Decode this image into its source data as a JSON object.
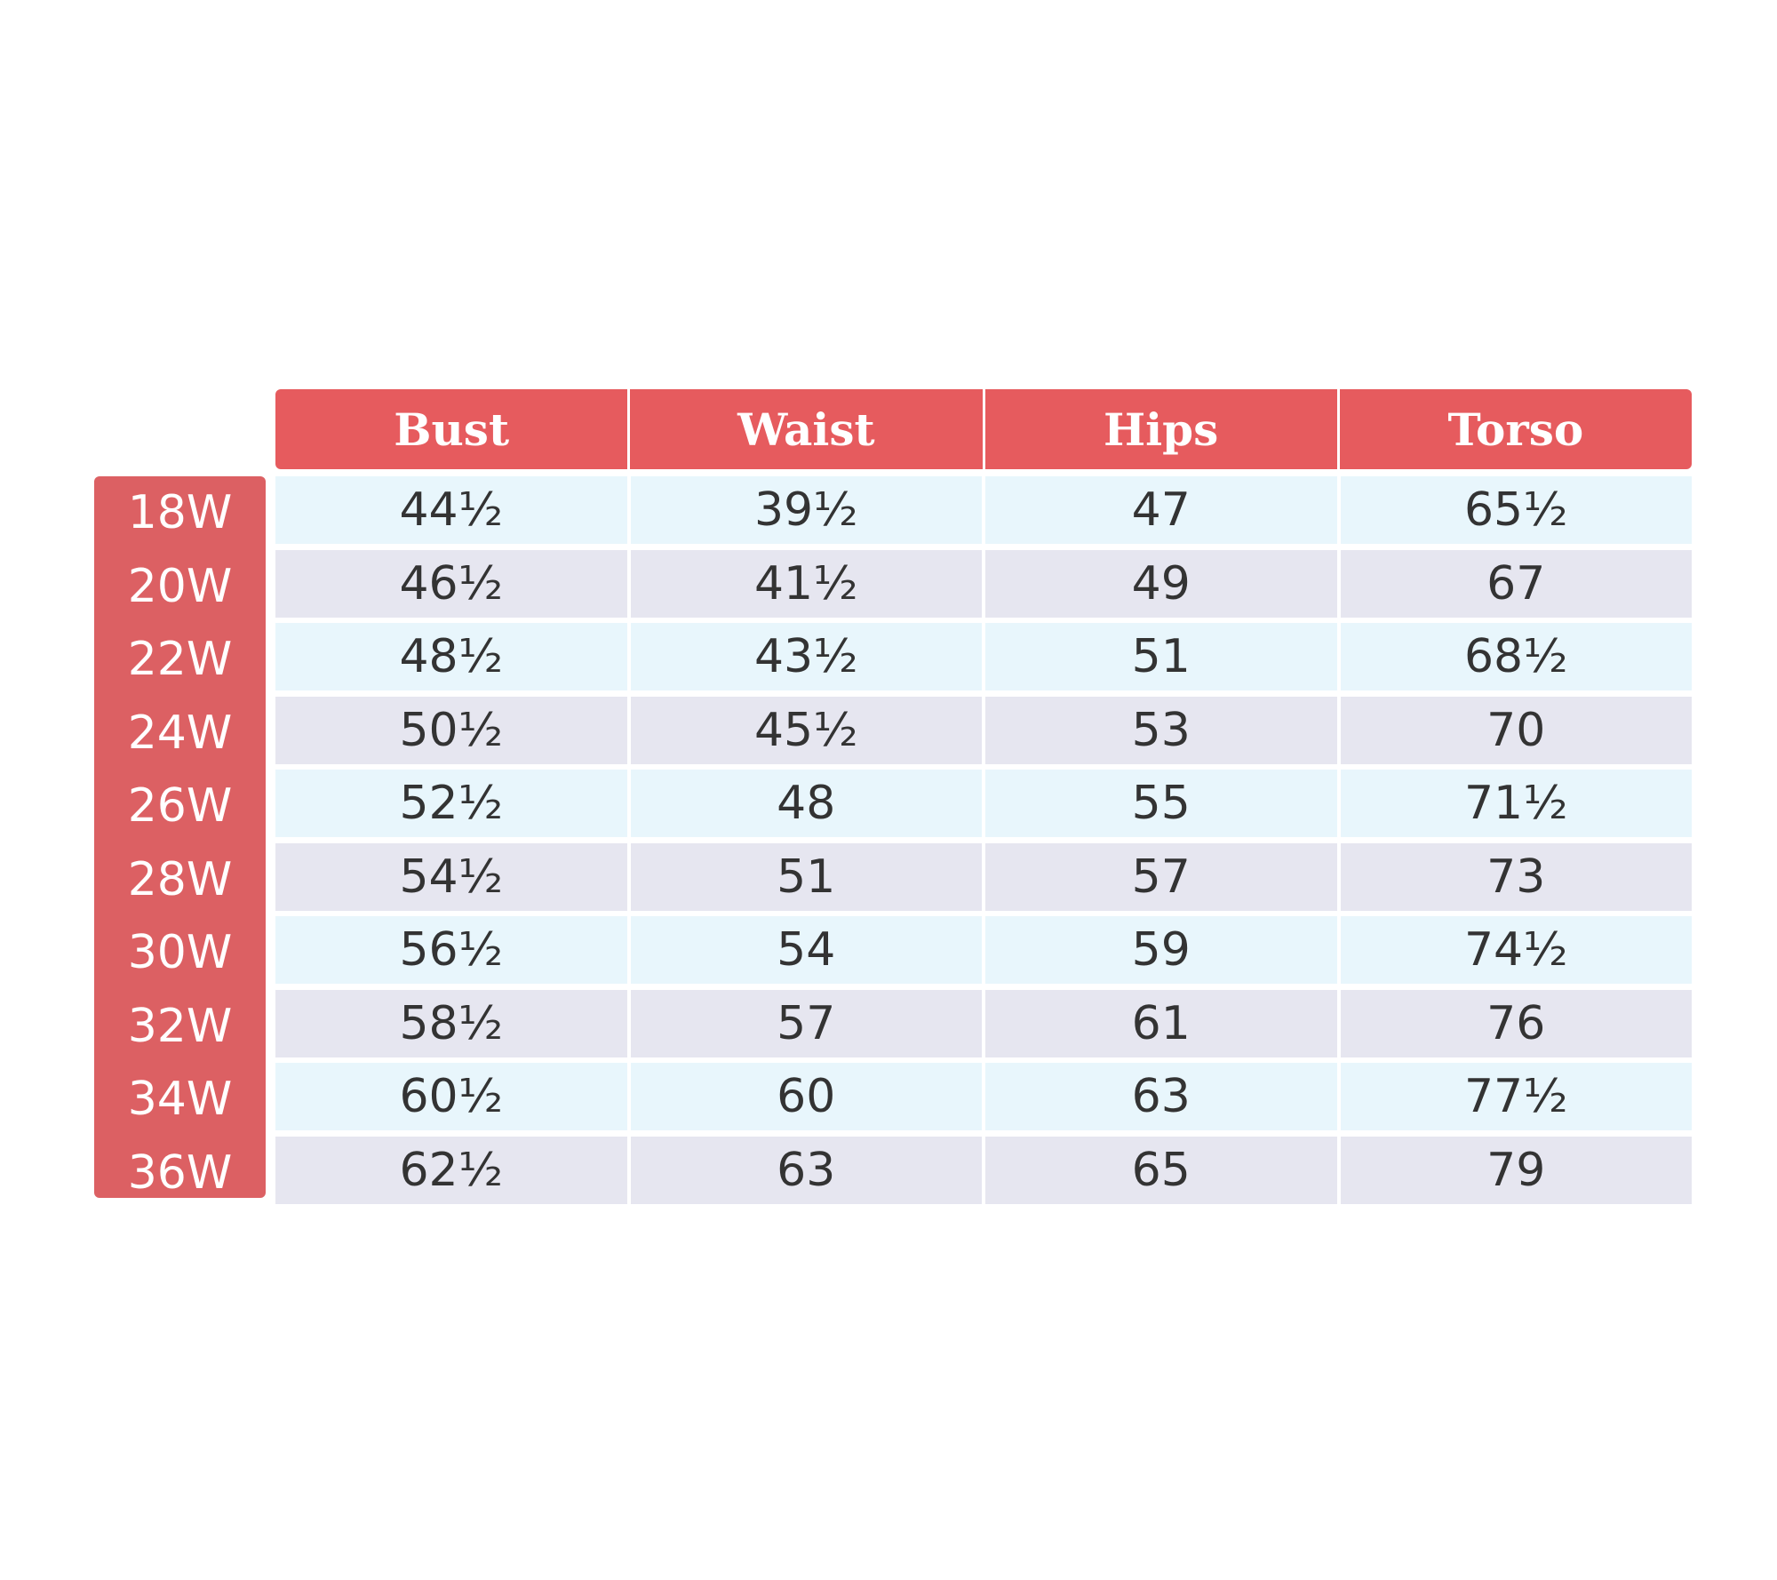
{
  "colors": {
    "header": "#e65b5e",
    "label_column": "#dc6063",
    "row_light": "#e8f6fc",
    "row_alt": "#e6e6f0"
  },
  "table": {
    "headers": [
      "Bust",
      "Waist",
      "Hips",
      "Torso"
    ],
    "rows": [
      {
        "size": "18W",
        "values": [
          "44½",
          "39½",
          "47",
          "65½"
        ]
      },
      {
        "size": "20W",
        "values": [
          "46½",
          "41½",
          "49",
          "67"
        ]
      },
      {
        "size": "22W",
        "values": [
          "48½",
          "43½",
          "51",
          "68½"
        ]
      },
      {
        "size": "24W",
        "values": [
          "50½",
          "45½",
          "53",
          "70"
        ]
      },
      {
        "size": "26W",
        "values": [
          "52½",
          "48",
          "55",
          "71½"
        ]
      },
      {
        "size": "28W",
        "values": [
          "54½",
          "51",
          "57",
          "73"
        ]
      },
      {
        "size": "30W",
        "values": [
          "56½",
          "54",
          "59",
          "74½"
        ]
      },
      {
        "size": "32W",
        "values": [
          "58½",
          "57",
          "61",
          "76"
        ]
      },
      {
        "size": "34W",
        "values": [
          "60½",
          "60",
          "63",
          "77½"
        ]
      },
      {
        "size": "36W",
        "values": [
          "62½",
          "63",
          "65",
          "79"
        ]
      }
    ]
  }
}
